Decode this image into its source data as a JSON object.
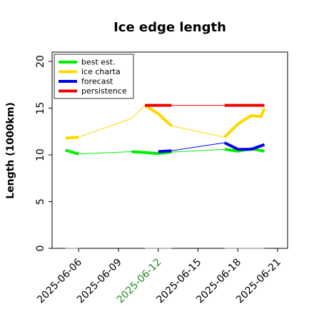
{
  "chart_data": {
    "type": "line",
    "title": "Ice edge length",
    "ylabel": "Length (1000km)",
    "xlabel": "",
    "ylim": [
      0,
      21
    ],
    "xlim": [
      "2025-06-04",
      "2025-06-21 18:00"
    ],
    "yticks": [
      0,
      5,
      10,
      15,
      20
    ],
    "xticks": [
      {
        "date": "2025-06-06",
        "label": "2025-06-06",
        "color": "#000000"
      },
      {
        "date": "2025-06-09",
        "label": "2025-06-09",
        "color": "#000000"
      },
      {
        "date": "2025-06-12",
        "label": "2025-06-12",
        "color": "#228b22"
      },
      {
        "date": "2025-06-15",
        "label": "2025-06-15",
        "color": "#000000"
      },
      {
        "date": "2025-06-18",
        "label": "2025-06-18",
        "color": "#000000"
      },
      {
        "date": "2025-06-21",
        "label": "2025-06-21",
        "color": "#000000"
      }
    ],
    "legend_position": "top-left",
    "grid": false,
    "series": [
      {
        "name": "best est.",
        "color": "#00ee00",
        "segments": [
          {
            "x": [
              "2025-06-05",
              "2025-06-06"
            ],
            "y": [
              10.5,
              10.1
            ],
            "thick": true
          },
          {
            "x": [
              "2025-06-06",
              "2025-06-10"
            ],
            "y": [
              10.1,
              10.35
            ],
            "thick": false
          },
          {
            "x": [
              "2025-06-10",
              "2025-06-11",
              "2025-06-12",
              "2025-06-13"
            ],
            "y": [
              10.35,
              10.25,
              10.15,
              10.3
            ],
            "thick": true
          },
          {
            "x": [
              "2025-06-13",
              "2025-06-17"
            ],
            "y": [
              10.3,
              10.6
            ],
            "thick": false
          },
          {
            "x": [
              "2025-06-17",
              "2025-06-18",
              "2025-06-19",
              "2025-06-20"
            ],
            "y": [
              10.6,
              10.4,
              10.65,
              10.4
            ],
            "thick": true
          }
        ]
      },
      {
        "name": "ice charta",
        "color": "#ffd700",
        "segments": [
          {
            "x": [
              "2025-06-05",
              "2025-06-06"
            ],
            "y": [
              11.8,
              11.9
            ],
            "thick": true
          },
          {
            "x": [
              "2025-06-06",
              "2025-06-10",
              "2025-06-11"
            ],
            "y": [
              11.9,
              13.9,
              15.3
            ],
            "thick": false
          },
          {
            "x": [
              "2025-06-11",
              "2025-06-12",
              "2025-06-13"
            ],
            "y": [
              15.3,
              14.4,
              13.1
            ],
            "thick": true
          },
          {
            "x": [
              "2025-06-13",
              "2025-06-17"
            ],
            "y": [
              13.1,
              11.9
            ],
            "thick": false
          },
          {
            "x": [
              "2025-06-17",
              "2025-06-18",
              "2025-06-19",
              "2025-06-19 18:00",
              "2025-06-20"
            ],
            "y": [
              11.9,
              13.3,
              14.2,
              14.1,
              15.0
            ],
            "thick": true
          }
        ]
      },
      {
        "name": "forecast",
        "color": "#0000ee",
        "segments": [
          {
            "x": [
              "2025-06-12",
              "2025-06-13"
            ],
            "y": [
              10.35,
              10.45
            ],
            "thick": true
          },
          {
            "x": [
              "2025-06-13",
              "2025-06-17"
            ],
            "y": [
              10.45,
              11.3
            ],
            "thick": false
          },
          {
            "x": [
              "2025-06-17",
              "2025-06-18",
              "2025-06-19",
              "2025-06-20"
            ],
            "y": [
              11.3,
              10.6,
              10.6,
              11.1
            ],
            "thick": true
          }
        ]
      },
      {
        "name": "persistence",
        "color": "#ee0000",
        "segments": [
          {
            "x": [
              "2025-06-11",
              "2025-06-13"
            ],
            "y": [
              15.3,
              15.3
            ],
            "thick": true
          },
          {
            "x": [
              "2025-06-13",
              "2025-06-17"
            ],
            "y": [
              15.3,
              15.3
            ],
            "thick": false
          },
          {
            "x": [
              "2025-06-17",
              "2025-06-20"
            ],
            "y": [
              15.3,
              15.3
            ],
            "thick": true
          }
        ]
      },
      {
        "color": "#808080",
        "segments": [
          {
            "x": [
              "2025-06-05",
              "2025-06-06"
            ],
            "y": [
              0,
              0
            ],
            "thick": false
          },
          {
            "x": [
              "2025-06-11",
              "2025-06-13"
            ],
            "y": [
              0,
              0
            ],
            "thick": false
          },
          {
            "x": [
              "2025-06-17",
              "2025-06-20"
            ],
            "y": [
              0,
              0
            ],
            "thick": false
          }
        ]
      }
    ]
  }
}
